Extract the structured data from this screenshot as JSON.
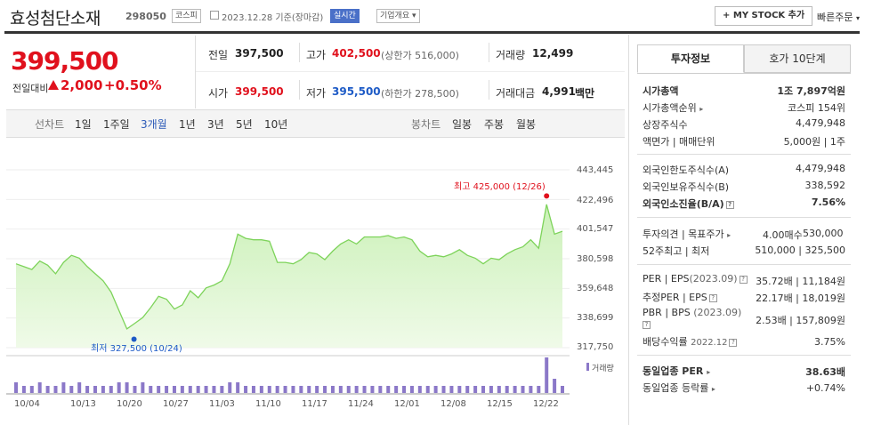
{
  "header": {
    "name": "효성첨단소재",
    "code": "298050",
    "market": "코스피",
    "date_text": "2023.12.28  기준(장마감)",
    "realtime": "실시간",
    "company_overview": "기업개요",
    "mystock_button": "MY STOCK 추가",
    "quick_order": "빠른주문"
  },
  "quote": {
    "price": "399,500",
    "change_label": "전일대비",
    "change": "2,000",
    "change_pct": "+0.50%",
    "prev_label": "전일",
    "prev": "397,500",
    "high_label": "고가",
    "high": "402,500",
    "upper_limit": "(상한가 516,000)",
    "volume_label": "거래량",
    "volume": "12,499",
    "open_label": "시가",
    "open": "399,500",
    "low_label": "저가",
    "low": "395,500",
    "lower_limit": "(하한가 278,500)",
    "amount_label": "거래대금",
    "amount": "4,991",
    "amount_unit": "백만"
  },
  "periods": {
    "line_label": "선차트",
    "items": [
      "1일",
      "1주일",
      "3개월",
      "1년",
      "3년",
      "5년",
      "10년"
    ],
    "active": "3개월",
    "candle_label": "봉차트",
    "candle_items": [
      "일봉",
      "주봉",
      "월봉"
    ]
  },
  "right_panel": {
    "tab_invest": "투자정보",
    "tab_hoga": "호가 10단계",
    "market_cap_label": "시가총액",
    "market_cap": "1조 7,897억원",
    "cap_rank_label": "시가총액순위",
    "cap_rank": "코스피 154위",
    "listed_label": "상장주식수",
    "listed": "4,479,948",
    "par_label": "액면가 | 매매단위",
    "par": "5,000원 | 1주",
    "foreign_limit_label": "외국인한도주식수(A)",
    "foreign_limit": "4,479,948",
    "foreign_hold_label": "외국인보유주식수(B)",
    "foreign_hold": "338,592",
    "foreign_ratio_label": "외국인소진율(B/A)",
    "foreign_ratio": "7.56%",
    "opinion_label": "투자의견 | 목표주가",
    "opinion": "4.00매수",
    "target": "530,000",
    "w52_label": "52주최고 | 최저",
    "w52": "510,000 | 325,500",
    "per_label": "PER | EPS",
    "per_period": "(2023.09)",
    "per": "35.72배 | 11,184원",
    "est_per_label": "추정PER | EPS",
    "est_per": "22.17배 | 18,019원",
    "pbr_label": "PBR | BPS",
    "pbr_period": "(2023.09)",
    "pbr": "2.53배 | 157,809원",
    "div_label": "배당수익률",
    "div_period": "2022.12",
    "div": "3.75%",
    "ind_per_label": "동일업종 PER",
    "ind_per": "38.63배",
    "ind_rate_label": "동일업종 등락률",
    "ind_rate": "+0.74%"
  },
  "chart_data": {
    "type": "line",
    "y_ticks": [
      "443,445",
      "422,496",
      "401,547",
      "380,598",
      "359,648",
      "338,699",
      "317,750"
    ],
    "ylim": [
      317750,
      443445
    ],
    "x_ticks": [
      "10/04",
      "10/13",
      "10/20",
      "10/27",
      "11/03",
      "11/10",
      "11/17",
      "11/24",
      "12/01",
      "12/08",
      "12/15",
      "12/22"
    ],
    "high_annotation": "최고 425,000 (12/26)",
    "low_annotation": "최저 327,500 (10/24)",
    "volume_label": "거래량",
    "values": [
      377000,
      375000,
      373000,
      379000,
      376000,
      370000,
      378000,
      383000,
      381000,
      375000,
      370000,
      365000,
      357000,
      344000,
      331000,
      335000,
      339000,
      346000,
      354000,
      352000,
      345000,
      348000,
      358000,
      353000,
      360000,
      362000,
      365000,
      377000,
      398000,
      395000,
      394000,
      394000,
      393000,
      378000,
      378000,
      377000,
      380000,
      385000,
      384000,
      380000,
      386000,
      391000,
      394000,
      391000,
      396000,
      396000,
      396000,
      397000,
      395000,
      396000,
      394000,
      386000,
      382000,
      383000,
      382000,
      384000,
      387000,
      383000,
      381000,
      377000,
      381000,
      380000,
      384000,
      387000,
      389000,
      394000,
      388000,
      419000,
      398000,
      400000
    ],
    "volume": [
      3,
      2,
      2,
      3,
      2,
      2,
      3,
      2,
      3,
      2,
      2,
      2,
      2,
      3,
      3,
      2,
      3,
      2,
      2,
      2,
      2,
      2,
      2,
      2,
      2,
      2,
      2,
      3,
      3,
      2,
      2,
      2,
      2,
      2,
      2,
      2,
      2,
      2,
      2,
      2,
      2,
      2,
      2,
      2,
      2,
      2,
      2,
      2,
      2,
      2,
      2,
      2,
      2,
      2,
      2,
      2,
      2,
      2,
      2,
      2,
      2,
      2,
      2,
      2,
      2,
      2,
      2,
      10,
      4,
      2
    ]
  }
}
